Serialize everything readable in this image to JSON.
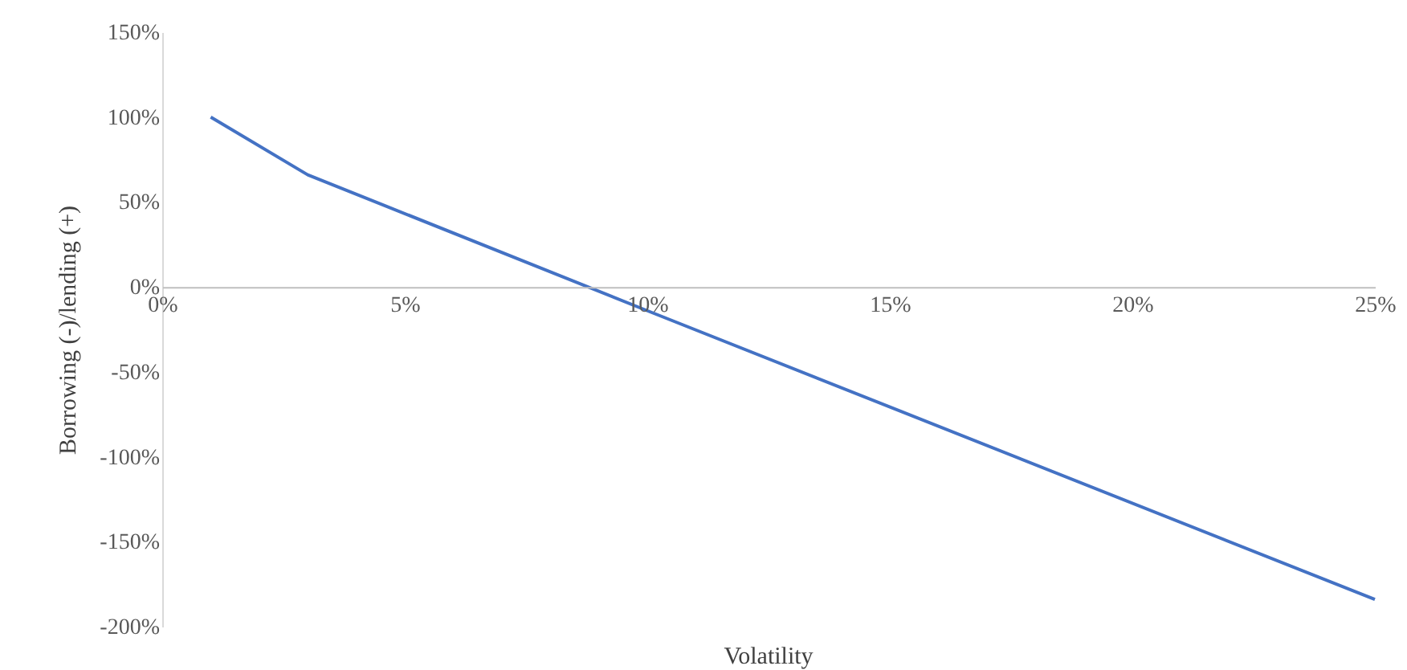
{
  "chart_data": {
    "type": "line",
    "xlabel": "Volatility",
    "ylabel": "Borrowing (-)/lending (+)",
    "x": [
      1,
      3,
      10,
      25
    ],
    "series": [
      {
        "color": "#4472c4",
        "values": [
          100,
          66,
          -14,
          -184
        ]
      }
    ],
    "xlim": [
      0,
      25
    ],
    "ylim": [
      -200,
      150
    ],
    "xticks": [
      {
        "value": 0,
        "label": "0%"
      },
      {
        "value": 5,
        "label": "5%"
      },
      {
        "value": 10,
        "label": "10%"
      },
      {
        "value": 15,
        "label": "15%"
      },
      {
        "value": 20,
        "label": "20%"
      },
      {
        "value": 25,
        "label": "25%"
      }
    ],
    "yticks": [
      {
        "value": -200,
        "label": "-200%"
      },
      {
        "value": -150,
        "label": "-150%"
      },
      {
        "value": -100,
        "label": "-100%"
      },
      {
        "value": -50,
        "label": "-50%"
      },
      {
        "value": 0,
        "label": "0%"
      },
      {
        "value": 50,
        "label": "50%"
      },
      {
        "value": 100,
        "label": "100%"
      },
      {
        "value": 150,
        "label": "150%"
      }
    ],
    "grid": false,
    "marker": "none",
    "line_style": "solid"
  }
}
